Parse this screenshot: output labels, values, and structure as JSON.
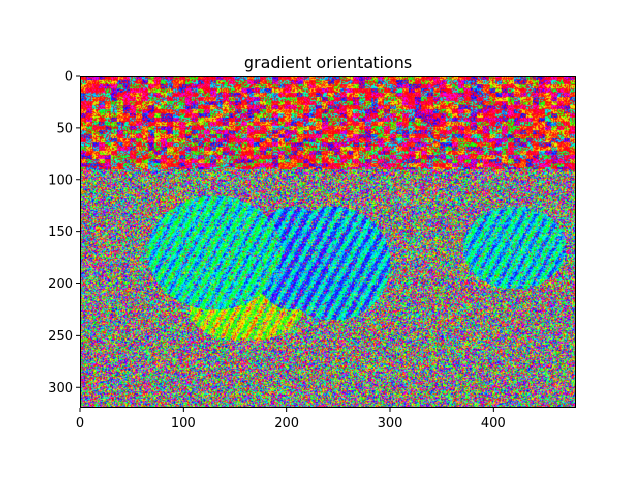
{
  "chart_data": {
    "type": "heatmap",
    "title": "gradient orientations",
    "xlabel": "",
    "ylabel": "",
    "image_size": [
      480,
      320
    ],
    "xlim": [
      0,
      480
    ],
    "ylim": [
      320,
      0
    ],
    "x_ticks": [
      0,
      100,
      200,
      300,
      400
    ],
    "y_ticks": [
      0,
      50,
      100,
      150,
      200,
      250,
      300
    ],
    "colormap": "hsv",
    "grid": false,
    "legend": "none"
  }
}
